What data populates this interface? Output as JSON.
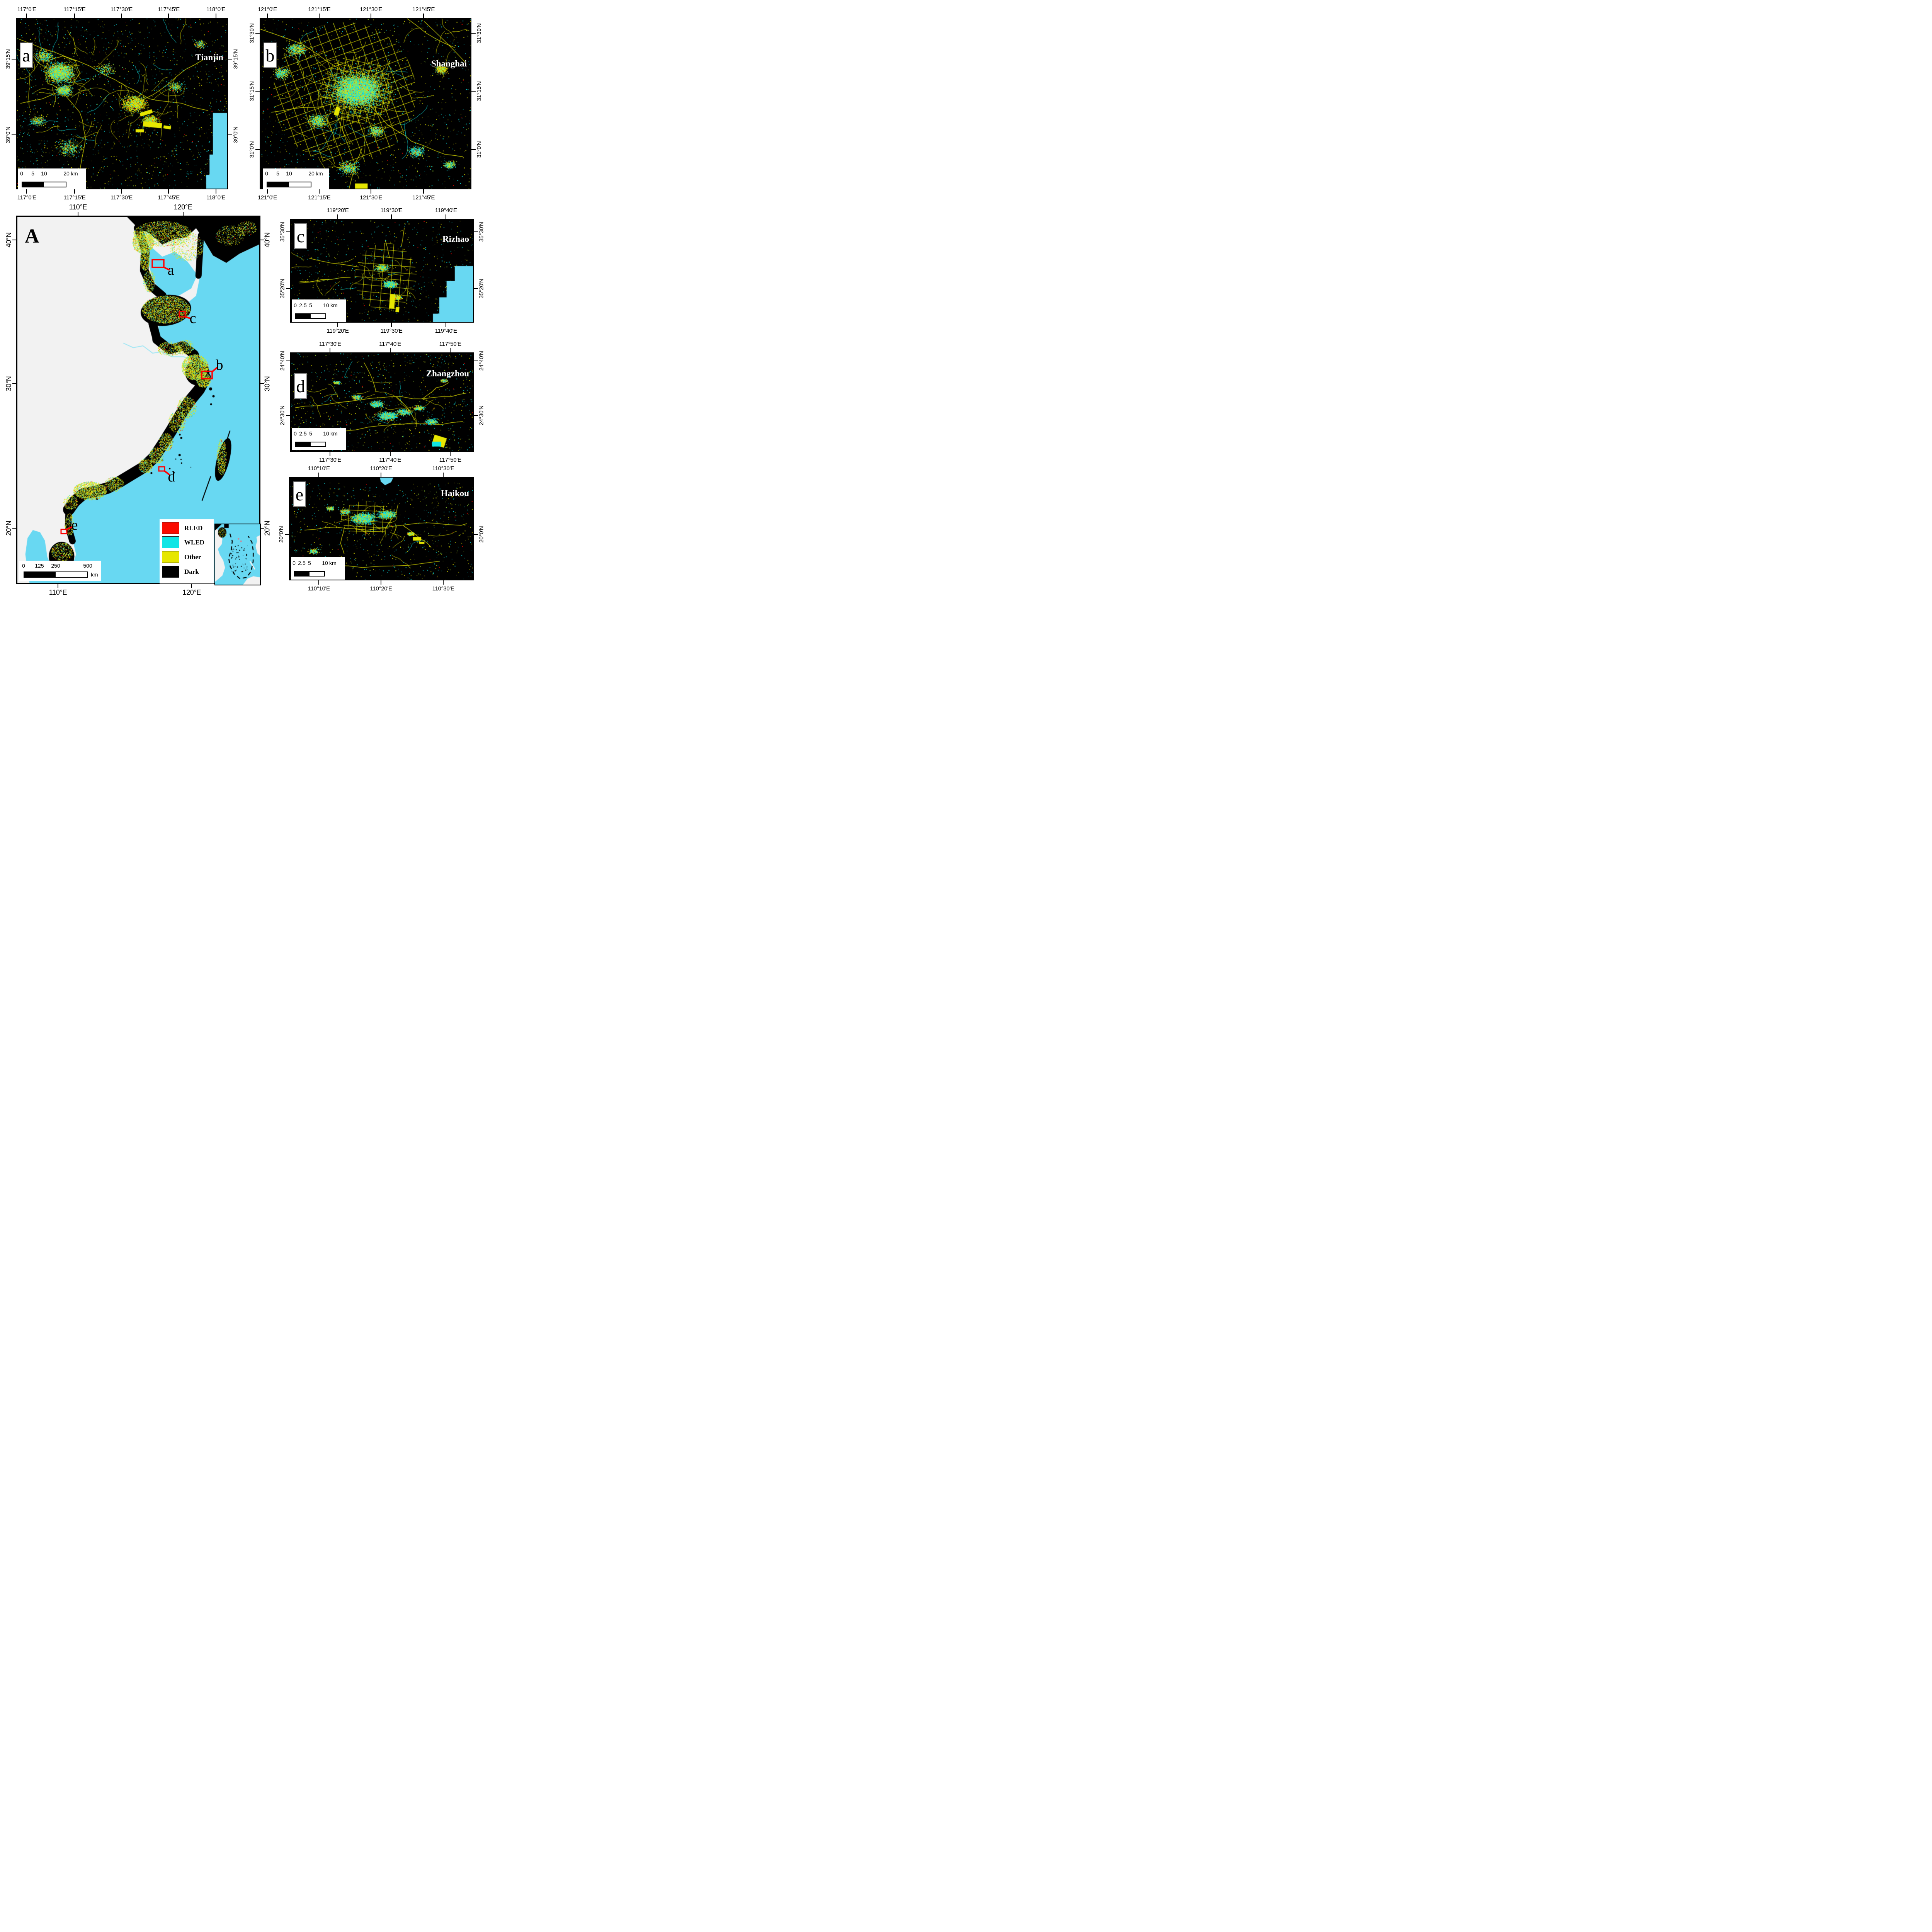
{
  "colors": {
    "sea": "#68D8F2",
    "land": "#F2F2F2",
    "rled": "#FA0B00",
    "wled": "#10E5E5",
    "other": "#E6E600",
    "dark": "#000000",
    "annotation_red": "#FF0000",
    "lime": "#A5E838",
    "river": "#9BE6F5"
  },
  "legend": {
    "items": [
      {
        "label": "RLED",
        "color": "#FA0B00"
      },
      {
        "label": "WLED",
        "color": "#10E5E5"
      },
      {
        "label": "Other",
        "color": "#E6E600"
      },
      {
        "label": "Dark",
        "color": "#000000"
      }
    ]
  },
  "main_map": {
    "letter": "A",
    "top_labels": [
      "110°E",
      "120°E"
    ],
    "bottom_labels": [
      "110°E",
      "120°E"
    ],
    "left_labels": [
      "40°N",
      "30°N",
      "20°N"
    ],
    "right_labels": [
      "40°N",
      "30°N",
      "20°N"
    ],
    "scale": {
      "labels": [
        "0",
        "125",
        "250",
        "500"
      ],
      "unit": "km"
    },
    "markers": [
      {
        "letter": "a"
      },
      {
        "letter": "b"
      },
      {
        "letter": "c"
      },
      {
        "letter": "d"
      },
      {
        "letter": "e"
      }
    ]
  },
  "panels": {
    "a": {
      "letter": "a",
      "title": "Tianjin",
      "top_labels": [
        "117°0'E",
        "117°15'E",
        "117°30'E",
        "117°45'E",
        "118°0'E"
      ],
      "bottom_labels": [
        "117°0'E",
        "117°15'E",
        "117°30'E",
        "117°45'E",
        "118°0'E"
      ],
      "left_labels": [
        "39°15'N",
        "39°0'N"
      ],
      "right_labels": [
        "39°15'N",
        "39°0'N"
      ],
      "scale": {
        "labels": [
          "0",
          "5",
          "10",
          "20"
        ],
        "unit": "km"
      }
    },
    "b": {
      "letter": "b",
      "title": "Shanghai",
      "top_labels": [
        "121°0'E",
        "121°15'E",
        "121°30'E",
        "121°45'E"
      ],
      "bottom_labels": [
        "121°0'E",
        "121°15'E",
        "121°30'E",
        "121°45'E"
      ],
      "left_labels": [
        "31°30'N",
        "31°15'N",
        "31°0'N"
      ],
      "right_labels": [
        "31°30'N",
        "31°15'N",
        "31°0'N"
      ],
      "scale": {
        "labels": [
          "0",
          "5",
          "10",
          "20"
        ],
        "unit": "km"
      }
    },
    "c": {
      "letter": "c",
      "title": "Rizhao",
      "top_labels": [
        "119°20'E",
        "119°30'E",
        "119°40'E"
      ],
      "bottom_labels": [
        "119°20'E",
        "119°30'E",
        "119°40'E"
      ],
      "left_labels": [
        "35°30'N",
        "35°20'N"
      ],
      "right_labels": [
        "35°30'N",
        "35°20'N"
      ],
      "scale": {
        "labels": [
          "0",
          "2.5",
          "5",
          "10"
        ],
        "unit": "km"
      }
    },
    "d": {
      "letter": "d",
      "title": "Zhangzhou",
      "top_labels": [
        "117°30'E",
        "117°40'E",
        "117°50'E"
      ],
      "bottom_labels": [
        "117°30'E",
        "117°40'E",
        "117°50'E"
      ],
      "left_labels": [
        "24°40'N",
        "24°30'N"
      ],
      "right_labels": [
        "24°40'N",
        "24°30'N"
      ],
      "scale": {
        "labels": [
          "0",
          "2.5",
          "5",
          "10"
        ],
        "unit": "km"
      }
    },
    "e": {
      "letter": "e",
      "title": "Haikou",
      "top_labels": [
        "110°10'E",
        "110°20'E",
        "110°30'E"
      ],
      "bottom_labels": [
        "110°10'E",
        "110°20'E",
        "110°30'E"
      ],
      "left_labels": [
        "20°0'N"
      ],
      "right_labels": [
        "20°0'N"
      ],
      "scale": {
        "labels": [
          "0",
          "2.5",
          "5",
          "10"
        ],
        "unit": "km"
      }
    }
  }
}
